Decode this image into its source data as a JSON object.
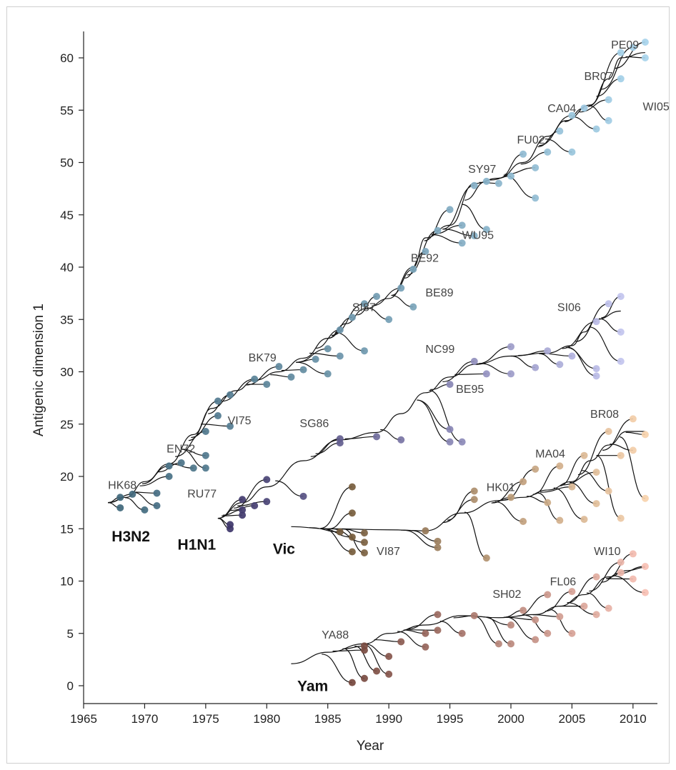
{
  "chart_data": {
    "type": "scatter",
    "xlabel": "Year",
    "ylabel": "Antigenic dimension 1",
    "xlim": [
      1965,
      2012
    ],
    "ylim": [
      -2,
      63
    ],
    "x_ticks": [
      1965,
      1970,
      1975,
      1980,
      1985,
      1990,
      1995,
      2000,
      2005,
      2010
    ],
    "y_ticks": [
      0,
      5,
      10,
      15,
      20,
      25,
      30,
      35,
      40,
      45,
      50,
      55,
      60
    ],
    "grid": false,
    "series": [
      {
        "name": "H3N2",
        "color_start": "#3d6478",
        "color_end": "#a8d4ec",
        "trunk": [
          [
            1967.0,
            17.5
          ],
          [
            1968.5,
            18.0
          ],
          [
            1970.0,
            19.5
          ],
          [
            1972.0,
            21.2
          ],
          [
            1974.0,
            24.0
          ],
          [
            1975.5,
            26.5
          ],
          [
            1977.5,
            28.2
          ],
          [
            1979.0,
            29.2
          ],
          [
            1981.0,
            30.0
          ],
          [
            1983.0,
            31.3
          ],
          [
            1985.0,
            33.2
          ],
          [
            1986.5,
            34.6
          ],
          [
            1988.0,
            36.0
          ],
          [
            1990.0,
            37.0
          ],
          [
            1992.0,
            40.0
          ],
          [
            1993.0,
            42.8
          ],
          [
            1995.0,
            44.0
          ],
          [
            1997.0,
            48.0
          ],
          [
            1999.0,
            48.5
          ],
          [
            2001.0,
            50.0
          ],
          [
            2003.0,
            52.5
          ],
          [
            2004.5,
            54.0
          ],
          [
            2006.5,
            55.5
          ],
          [
            2008.0,
            58.0
          ],
          [
            2009.0,
            60.0
          ],
          [
            2011.0,
            60.5
          ]
        ],
        "tips": [
          [
            1968.0,
            17.0
          ],
          [
            1968.0,
            18.0
          ],
          [
            1969.0,
            18.3
          ],
          [
            1970.0,
            16.8
          ],
          [
            1971.0,
            17.2
          ],
          [
            1971.0,
            18.4
          ],
          [
            1972.0,
            20.0
          ],
          [
            1972.0,
            21.0
          ],
          [
            1973.0,
            21.3
          ],
          [
            1974.0,
            20.8
          ],
          [
            1975.0,
            22.0
          ],
          [
            1975.0,
            24.3
          ],
          [
            1975.0,
            20.8
          ],
          [
            1976.0,
            25.8
          ],
          [
            1976.0,
            27.2
          ],
          [
            1977.0,
            24.8
          ],
          [
            1977.0,
            27.8
          ],
          [
            1979.0,
            29.3
          ],
          [
            1980.0,
            28.8
          ],
          [
            1981.0,
            30.5
          ],
          [
            1982.0,
            29.5
          ],
          [
            1983.0,
            30.2
          ],
          [
            1984.0,
            31.2
          ],
          [
            1985.0,
            32.2
          ],
          [
            1985.0,
            29.8
          ],
          [
            1986.0,
            31.5
          ],
          [
            1988.0,
            32.0
          ],
          [
            1986.0,
            34.0
          ],
          [
            1987.0,
            35.2
          ],
          [
            1988.0,
            36.5
          ],
          [
            1989.0,
            37.2
          ],
          [
            1990.0,
            35.0
          ],
          [
            1991.0,
            38.0
          ],
          [
            1992.0,
            36.2
          ],
          [
            1992.0,
            39.8
          ],
          [
            1993.0,
            41.5
          ],
          [
            1994.0,
            43.5
          ],
          [
            1995.0,
            45.5
          ],
          [
            1996.0,
            42.3
          ],
          [
            1996.0,
            44.0
          ],
          [
            1997.0,
            43.0
          ],
          [
            1998.0,
            43.6
          ],
          [
            1997.0,
            47.8
          ],
          [
            1998.0,
            48.2
          ],
          [
            1999.0,
            48.0
          ],
          [
            2000.0,
            48.7
          ],
          [
            2001.0,
            50.8
          ],
          [
            2002.0,
            46.6
          ],
          [
            2002.0,
            49.5
          ],
          [
            2003.0,
            51.0
          ],
          [
            2004.0,
            53.0
          ],
          [
            2005.0,
            51.0
          ],
          [
            2005.0,
            54.5
          ],
          [
            2006.0,
            55.2
          ],
          [
            2007.0,
            53.2
          ],
          [
            2008.0,
            56.0
          ],
          [
            2008.0,
            54.0
          ],
          [
            2009.0,
            58.0
          ],
          [
            2009.0,
            60.5
          ],
          [
            2010.0,
            61.0
          ],
          [
            2011.0,
            61.5
          ],
          [
            2011.0,
            60.0
          ]
        ],
        "labels": [
          {
            "text": "HK68",
            "x": 1967.0,
            "y": 18.8
          },
          {
            "text": "EN72",
            "x": 1971.8,
            "y": 22.3
          },
          {
            "text": "VI75",
            "x": 1976.8,
            "y": 25.0
          },
          {
            "text": "BK79",
            "x": 1978.5,
            "y": 31.0
          },
          {
            "text": "SI87",
            "x": 1987.0,
            "y": 35.8
          },
          {
            "text": "BE89",
            "x": 1993.0,
            "y": 37.2
          },
          {
            "text": "BE92",
            "x": 1991.8,
            "y": 40.5
          },
          {
            "text": "WU95",
            "x": 1996.0,
            "y": 42.7
          },
          {
            "text": "SY97",
            "x": 1996.5,
            "y": 49.0
          },
          {
            "text": "FU02",
            "x": 2000.5,
            "y": 51.8
          },
          {
            "text": "CA04",
            "x": 2003.0,
            "y": 54.8
          },
          {
            "text": "BR07",
            "x": 2006.0,
            "y": 57.9
          },
          {
            "text": "WI05",
            "x": 2010.8,
            "y": 55.0
          },
          {
            "text": "PE09",
            "x": 2008.2,
            "y": 60.9
          }
        ]
      },
      {
        "name": "H1N1",
        "color_start": "#3a3266",
        "color_end": "#c2c4ee",
        "trunk": [
          [
            1976.0,
            16.0
          ],
          [
            1978.0,
            17.5
          ],
          [
            1980.0,
            19.0
          ],
          [
            1983.0,
            21.5
          ],
          [
            1986.0,
            23.5
          ],
          [
            1989.0,
            24.2
          ],
          [
            1991.0,
            26.0
          ],
          [
            1993.0,
            28.0
          ],
          [
            1995.0,
            29.5
          ],
          [
            1997.0,
            30.7
          ],
          [
            2000.0,
            31.5
          ],
          [
            2003.0,
            31.8
          ],
          [
            2005.0,
            32.5
          ],
          [
            2006.0,
            33.8
          ],
          [
            2007.0,
            35.0
          ],
          [
            2009.0,
            35.8
          ]
        ],
        "tips": [
          [
            1977.0,
            15.0
          ],
          [
            1977.0,
            15.4
          ],
          [
            1978.0,
            16.3
          ],
          [
            1978.0,
            16.8
          ],
          [
            1978.0,
            17.8
          ],
          [
            1979.0,
            17.2
          ],
          [
            1980.0,
            19.7
          ],
          [
            1980.0,
            17.6
          ],
          [
            1983.0,
            18.1
          ],
          [
            1986.0,
            23.2
          ],
          [
            1986.0,
            23.6
          ],
          [
            1989.0,
            23.8
          ],
          [
            1991.0,
            23.5
          ],
          [
            1995.0,
            24.5
          ],
          [
            1995.0,
            23.3
          ],
          [
            1996.0,
            23.3
          ],
          [
            1995.0,
            28.8
          ],
          [
            1997.0,
            31.0
          ],
          [
            1998.0,
            29.8
          ],
          [
            2000.0,
            32.4
          ],
          [
            2000.0,
            29.8
          ],
          [
            2002.0,
            30.4
          ],
          [
            2003.0,
            32.0
          ],
          [
            2004.0,
            30.7
          ],
          [
            2005.0,
            31.5
          ],
          [
            2007.0,
            30.3
          ],
          [
            2007.0,
            29.6
          ],
          [
            2007.0,
            34.8
          ],
          [
            2008.0,
            36.5
          ],
          [
            2009.0,
            37.2
          ],
          [
            2009.0,
            33.8
          ],
          [
            2009.0,
            31.0
          ]
        ],
        "labels": [
          {
            "text": "RU77",
            "x": 1973.5,
            "y": 18.0
          },
          {
            "text": "SG86",
            "x": 1982.7,
            "y": 24.7
          },
          {
            "text": "BE95",
            "x": 1995.5,
            "y": 28.0
          },
          {
            "text": "NC99",
            "x": 1993.0,
            "y": 31.8
          },
          {
            "text": "SI06",
            "x": 2003.8,
            "y": 35.8
          }
        ]
      },
      {
        "name": "Vic",
        "color_start": "#5c4526",
        "color_end": "#f7d2ad",
        "trunk": [
          [
            1982.0,
            15.2
          ],
          [
            1985.0,
            15.0
          ],
          [
            1990.0,
            14.9
          ],
          [
            1993.0,
            14.8
          ],
          [
            1996.0,
            16.5
          ],
          [
            1999.0,
            17.7
          ],
          [
            2001.0,
            18.0
          ],
          [
            2003.0,
            18.7
          ],
          [
            2005.0,
            19.5
          ],
          [
            2006.5,
            21.5
          ],
          [
            2008.0,
            23.0
          ],
          [
            2009.5,
            24.3
          ],
          [
            2011.0,
            24.3
          ]
        ],
        "tips": [
          [
            1987.0,
            19.0
          ],
          [
            1987.0,
            16.5
          ],
          [
            1986.0,
            14.7
          ],
          [
            1987.0,
            12.8
          ],
          [
            1987.0,
            14.2
          ],
          [
            1988.0,
            13.7
          ],
          [
            1988.0,
            12.7
          ],
          [
            1988.0,
            14.6
          ],
          [
            1993.0,
            14.8
          ],
          [
            1994.0,
            13.8
          ],
          [
            1994.0,
            13.2
          ],
          [
            1997.0,
            17.8
          ],
          [
            1997.0,
            18.6
          ],
          [
            1998.0,
            12.2
          ],
          [
            2000.0,
            18.0
          ],
          [
            2001.0,
            15.7
          ],
          [
            2001.0,
            19.5
          ],
          [
            2002.0,
            20.7
          ],
          [
            2003.0,
            17.5
          ],
          [
            2004.0,
            21.0
          ],
          [
            2004.0,
            15.8
          ],
          [
            2005.0,
            19.0
          ],
          [
            2006.0,
            22.0
          ],
          [
            2006.0,
            15.9
          ],
          [
            2007.0,
            20.4
          ],
          [
            2007.0,
            17.4
          ],
          [
            2008.0,
            24.3
          ],
          [
            2008.0,
            18.6
          ],
          [
            2009.0,
            22.0
          ],
          [
            2009.0,
            16.0
          ],
          [
            2010.0,
            25.5
          ],
          [
            2010.0,
            22.5
          ],
          [
            2011.0,
            24.0
          ],
          [
            2011.0,
            17.9
          ]
        ],
        "labels": [
          {
            "text": "VI87",
            "x": 1989.0,
            "y": 12.5
          },
          {
            "text": "HK01",
            "x": 1998.0,
            "y": 18.6
          },
          {
            "text": "MA04",
            "x": 2002.0,
            "y": 21.8
          },
          {
            "text": "BR08",
            "x": 2006.5,
            "y": 25.6
          }
        ]
      },
      {
        "name": "Yam",
        "color_start": "#5a2e24",
        "color_end": "#f7c0b4",
        "trunk": [
          [
            1982.0,
            2.1
          ],
          [
            1985.0,
            3.2
          ],
          [
            1988.0,
            4.0
          ],
          [
            1990.0,
            5.0
          ],
          [
            1993.0,
            5.8
          ],
          [
            1996.0,
            6.7
          ],
          [
            1999.0,
            6.5
          ],
          [
            2002.0,
            6.8
          ],
          [
            2004.0,
            7.6
          ],
          [
            2006.0,
            8.7
          ],
          [
            2008.0,
            10.4
          ],
          [
            2009.5,
            11.0
          ],
          [
            2011.0,
            11.3
          ]
        ],
        "tips": [
          [
            1987.0,
            0.3
          ],
          [
            1988.0,
            0.7
          ],
          [
            1988.0,
            3.4
          ],
          [
            1988.0,
            3.8
          ],
          [
            1989.0,
            1.4
          ],
          [
            1990.0,
            1.1
          ],
          [
            1990.0,
            2.8
          ],
          [
            1991.0,
            4.2
          ],
          [
            1993.0,
            3.7
          ],
          [
            1993.0,
            5.0
          ],
          [
            1994.0,
            6.8
          ],
          [
            1994.0,
            5.3
          ],
          [
            1996.0,
            5.0
          ],
          [
            1997.0,
            6.7
          ],
          [
            1999.0,
            4.0
          ],
          [
            2000.0,
            4.0
          ],
          [
            2000.0,
            5.8
          ],
          [
            2001.0,
            7.2
          ],
          [
            2002.0,
            4.4
          ],
          [
            2002.0,
            6.3
          ],
          [
            2003.0,
            8.7
          ],
          [
            2003.0,
            5.0
          ],
          [
            2004.0,
            6.6
          ],
          [
            2005.0,
            5.0
          ],
          [
            2005.0,
            9.0
          ],
          [
            2006.0,
            7.6
          ],
          [
            2007.0,
            10.4
          ],
          [
            2007.0,
            6.8
          ],
          [
            2008.0,
            7.4
          ],
          [
            2009.0,
            10.8
          ],
          [
            2009.0,
            11.8
          ],
          [
            2010.0,
            12.6
          ],
          [
            2010.0,
            10.2
          ],
          [
            2011.0,
            11.4
          ],
          [
            2011.0,
            8.9
          ]
        ],
        "labels": [
          {
            "text": "YA88",
            "x": 1984.5,
            "y": 4.5
          },
          {
            "text": "SH02",
            "x": 1998.5,
            "y": 8.4
          },
          {
            "text": "FL06",
            "x": 2003.2,
            "y": 9.6
          },
          {
            "text": "WI10",
            "x": 2006.8,
            "y": 12.5
          }
        ]
      }
    ],
    "lineage_labels": [
      {
        "text": "H3N2",
        "x": 1967.3,
        "y": 13.8
      },
      {
        "text": "H1N1",
        "x": 1972.7,
        "y": 13.0
      },
      {
        "text": "Vic",
        "x": 1980.5,
        "y": 12.6
      },
      {
        "text": "Yam",
        "x": 1982.5,
        "y": -0.5
      }
    ]
  }
}
